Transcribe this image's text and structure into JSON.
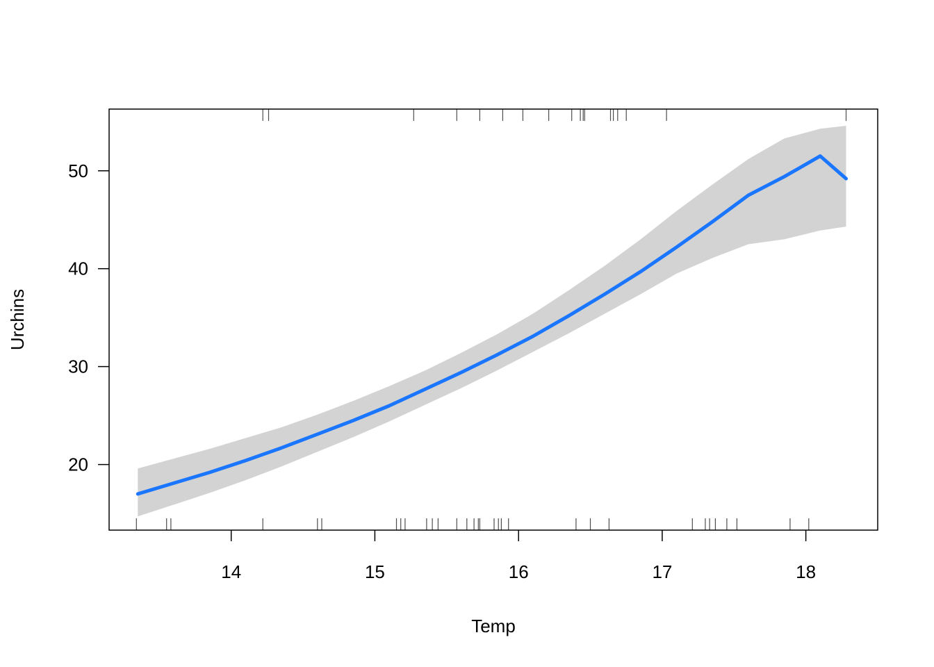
{
  "chart_data": {
    "type": "line",
    "title": "",
    "xlabel": "Temp",
    "ylabel": "Urchins",
    "xlim": [
      13.15,
      18.5
    ],
    "ylim": [
      13.3,
      56.3
    ],
    "xticks": [
      14,
      15,
      16,
      17,
      18
    ],
    "yticks": [
      20,
      30,
      40,
      50
    ],
    "grid": false,
    "legend": "none",
    "fit": {
      "x": [
        13.35,
        13.6,
        13.85,
        14.1,
        14.35,
        14.6,
        14.85,
        15.1,
        15.35,
        15.6,
        15.85,
        16.1,
        16.35,
        16.6,
        16.85,
        17.1,
        17.35,
        17.6,
        17.85,
        18.1,
        18.28
      ],
      "y": [
        17.0,
        18.1,
        19.2,
        20.4,
        21.7,
        23.1,
        24.5,
        26.0,
        27.7,
        29.4,
        31.2,
        33.1,
        35.2,
        37.4,
        39.7,
        42.2,
        44.8,
        47.5,
        49.4,
        51.5,
        49.2
      ],
      "lower": [
        14.7,
        15.9,
        17.1,
        18.4,
        19.8,
        21.3,
        22.8,
        24.4,
        26.1,
        27.8,
        29.6,
        31.5,
        33.4,
        35.4,
        37.4,
        39.5,
        41.1,
        42.5,
        43.0,
        43.9,
        44.3
      ],
      "upper": [
        19.6,
        20.6,
        21.6,
        22.7,
        23.8,
        25.1,
        26.5,
        28.0,
        29.6,
        31.4,
        33.3,
        35.4,
        37.8,
        40.3,
        43.0,
        45.9,
        48.6,
        51.2,
        53.3,
        54.3,
        54.6
      ]
    },
    "rug_bottom": [
      13.34,
      13.55,
      13.58,
      14.22,
      14.6,
      14.63,
      15.15,
      15.18,
      15.21,
      15.36,
      15.4,
      15.44,
      15.57,
      15.64,
      15.69,
      15.72,
      15.73,
      15.83,
      15.86,
      15.88,
      15.93,
      16.4,
      16.5,
      16.63,
      17.21,
      17.3,
      17.33,
      17.37,
      17.45,
      17.52,
      17.89,
      18.02
    ],
    "rug_top": [
      14.22,
      14.26,
      15.27,
      15.57,
      15.73,
      15.89,
      16.03,
      16.21,
      16.37,
      16.43,
      16.45,
      16.46,
      16.64,
      16.66,
      16.69,
      16.75,
      17.03,
      18.28
    ],
    "colors": {
      "line": "#1a75ff",
      "band": "#d3d3d3",
      "axis": "#000000",
      "rug": "#4d4d4d"
    }
  }
}
